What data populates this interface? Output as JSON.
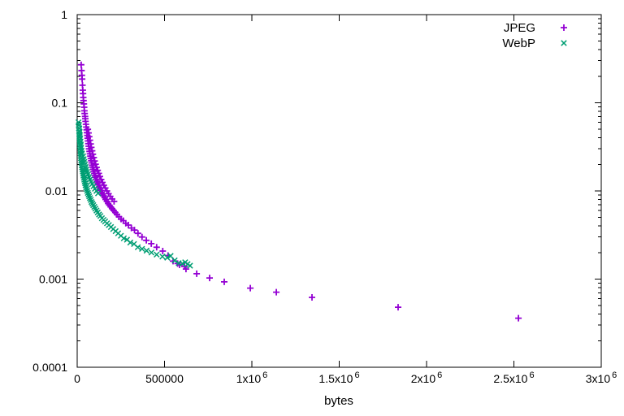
{
  "chart_data": {
    "type": "scatter",
    "title": "",
    "xlabel": "bytes",
    "ylabel": "",
    "background": "#ffffff",
    "axis_color": "#000000",
    "grid": false,
    "legend": {
      "position": "top-right-inside",
      "box": false
    },
    "x_axis": {
      "min": 0,
      "max": 3000000,
      "scale": "linear",
      "ticks": [
        {
          "value": 0,
          "base": "0",
          "sup": ""
        },
        {
          "value": 500000,
          "base": "500000",
          "sup": ""
        },
        {
          "value": 1000000,
          "base": "1x10",
          "sup": "6"
        },
        {
          "value": 1500000,
          "base": "1.5x10",
          "sup": "6"
        },
        {
          "value": 2000000,
          "base": "2x10",
          "sup": "6"
        },
        {
          "value": 2500000,
          "base": "2.5x10",
          "sup": "6"
        },
        {
          "value": 3000000,
          "base": "3x10",
          "sup": "6"
        }
      ]
    },
    "y_axis": {
      "min": 0.0001,
      "max": 1,
      "scale": "log",
      "ticks": [
        {
          "value": 1,
          "label": "1"
        },
        {
          "value": 0.1,
          "label": "0.1"
        },
        {
          "value": 0.01,
          "label": "0.01"
        },
        {
          "value": 0.001,
          "label": "0.001"
        },
        {
          "value": 0.0001,
          "label": "0.0001"
        }
      ],
      "minor_ticks": "2-9 per decade"
    },
    "series": [
      {
        "name": "JPEG",
        "marker": "plus",
        "color": "#9400D3",
        "points": [
          [
            23000,
            0.27
          ],
          [
            25000,
            0.232
          ],
          [
            27000,
            0.205
          ],
          [
            28500,
            0.186
          ],
          [
            30000,
            0.158
          ],
          [
            32000,
            0.139
          ],
          [
            33500,
            0.127
          ],
          [
            35000,
            0.115
          ],
          [
            36500,
            0.106
          ],
          [
            38000,
            0.097
          ],
          [
            40000,
            0.089
          ],
          [
            41500,
            0.081
          ],
          [
            43000,
            0.0755
          ],
          [
            45000,
            0.07
          ],
          [
            46500,
            0.066
          ],
          [
            48000,
            0.0615
          ],
          [
            50000,
            0.057
          ],
          [
            52000,
            0.053
          ],
          [
            54000,
            0.0492
          ],
          [
            56000,
            0.0458
          ],
          [
            58000,
            0.0426
          ],
          [
            60000,
            0.0396
          ],
          [
            62000,
            0.0369
          ],
          [
            64000,
            0.0344
          ],
          [
            66000,
            0.0321
          ],
          [
            68000,
            0.03
          ],
          [
            70500,
            0.0281
          ],
          [
            73000,
            0.0264
          ],
          [
            75500,
            0.0248
          ],
          [
            78000,
            0.0233
          ],
          [
            80500,
            0.022
          ],
          [
            83000,
            0.0208
          ],
          [
            86000,
            0.0196
          ],
          [
            89000,
            0.0186
          ],
          [
            92000,
            0.0176
          ],
          [
            95000,
            0.0167
          ],
          [
            98000,
            0.0158
          ],
          [
            101000,
            0.015
          ],
          [
            105000,
            0.0143
          ],
          [
            109000,
            0.0136
          ],
          [
            113000,
            0.0129
          ],
          [
            117000,
            0.0123
          ],
          [
            121000,
            0.0117
          ],
          [
            125000,
            0.0111
          ],
          [
            130000,
            0.0106
          ],
          [
            135000,
            0.0101
          ],
          [
            140000,
            0.0096
          ],
          [
            145000,
            0.0092
          ],
          [
            151000,
            0.0088
          ],
          [
            157000,
            0.0084
          ],
          [
            163000,
            0.008
          ],
          [
            170000,
            0.0076
          ],
          [
            177000,
            0.0072
          ],
          [
            184000,
            0.0069
          ],
          [
            192000,
            0.0066
          ],
          [
            200000,
            0.0063
          ],
          [
            209000,
            0.006
          ],
          [
            218000,
            0.0057
          ],
          [
            228000,
            0.0054
          ],
          [
            239000,
            0.0051
          ],
          [
            251000,
            0.0048
          ],
          [
            264000,
            0.0046
          ],
          [
            278000,
            0.0043
          ],
          [
            293000,
            0.0041
          ],
          [
            310000,
            0.0038
          ],
          [
            328000,
            0.0036
          ],
          [
            348000,
            0.0033
          ],
          [
            371000,
            0.003
          ],
          [
            396000,
            0.00275
          ],
          [
            424000,
            0.00252
          ],
          [
            455000,
            0.0023
          ],
          [
            490000,
            0.00208
          ],
          [
            520000,
            0.00185
          ],
          [
            549000,
            0.0016
          ],
          [
            575000,
            0.0015
          ],
          [
            586000,
            0.00145
          ],
          [
            614000,
            0.00139
          ],
          [
            623000,
            0.0013
          ],
          [
            684000,
            0.00115
          ],
          [
            758000,
            0.00103
          ],
          [
            842000,
            0.00093
          ],
          [
            991000,
            0.00079
          ],
          [
            1140000,
            0.00071
          ],
          [
            1344000,
            0.00062
          ],
          [
            1837000,
            0.00048
          ],
          [
            2526000,
            0.00036
          ],
          [
            61000,
            0.05
          ],
          [
            65000,
            0.0455
          ],
          [
            69000,
            0.0413
          ],
          [
            73000,
            0.0376
          ],
          [
            77000,
            0.0342
          ],
          [
            81000,
            0.0312
          ],
          [
            85500,
            0.0285
          ],
          [
            90000,
            0.0261
          ],
          [
            95000,
            0.0239
          ],
          [
            100000,
            0.0219
          ],
          [
            105500,
            0.0201
          ],
          [
            111000,
            0.0185
          ],
          [
            117000,
            0.0171
          ],
          [
            123500,
            0.0158
          ],
          [
            130000,
            0.0146
          ],
          [
            137000,
            0.0135
          ],
          [
            144500,
            0.0125
          ],
          [
            152500,
            0.0116
          ],
          [
            161000,
            0.0108
          ],
          [
            170000,
            0.01
          ],
          [
            179500,
            0.0093
          ],
          [
            189500,
            0.0087
          ],
          [
            200000,
            0.0081
          ],
          [
            211000,
            0.0076
          ]
        ]
      },
      {
        "name": "WebP",
        "marker": "cross",
        "color": "#009E73",
        "points": [
          [
            8000,
            0.06
          ],
          [
            9000,
            0.0555
          ],
          [
            10000,
            0.0515
          ],
          [
            11000,
            0.0477
          ],
          [
            12000,
            0.0442
          ],
          [
            13000,
            0.041
          ],
          [
            14000,
            0.0381
          ],
          [
            15000,
            0.0354
          ],
          [
            16000,
            0.0329
          ],
          [
            17000,
            0.0306
          ],
          [
            18000,
            0.0286
          ],
          [
            19000,
            0.0267
          ],
          [
            20000,
            0.025
          ],
          [
            21500,
            0.0235
          ],
          [
            23000,
            0.0221
          ],
          [
            24500,
            0.0208
          ],
          [
            26000,
            0.0196
          ],
          [
            28000,
            0.0185
          ],
          [
            30000,
            0.0175
          ],
          [
            32000,
            0.0166
          ],
          [
            34000,
            0.0157
          ],
          [
            36000,
            0.0149
          ],
          [
            38000,
            0.0141
          ],
          [
            40500,
            0.0134
          ],
          [
            43000,
            0.0128
          ],
          [
            45500,
            0.0122
          ],
          [
            48000,
            0.0116
          ],
          [
            51000,
            0.011
          ],
          [
            54000,
            0.0105
          ],
          [
            57500,
            0.01
          ],
          [
            61000,
            0.0095
          ],
          [
            65000,
            0.0091
          ],
          [
            69000,
            0.0087
          ],
          [
            73000,
            0.0083
          ],
          [
            77500,
            0.0079
          ],
          [
            82000,
            0.0075
          ],
          [
            87000,
            0.0072
          ],
          [
            92000,
            0.0069
          ],
          [
            98000,
            0.0066
          ],
          [
            104000,
            0.0063
          ],
          [
            110500,
            0.006
          ],
          [
            117500,
            0.0057
          ],
          [
            125000,
            0.0054
          ],
          [
            133000,
            0.0052
          ],
          [
            141500,
            0.0049
          ],
          [
            150500,
            0.0047
          ],
          [
            160000,
            0.0045
          ],
          [
            170500,
            0.0043
          ],
          [
            181500,
            0.0041
          ],
          [
            193500,
            0.0039
          ],
          [
            206000,
            0.0037
          ],
          [
            220000,
            0.0035
          ],
          [
            234500,
            0.0033
          ],
          [
            250000,
            0.0031
          ],
          [
            267000,
            0.0029
          ],
          [
            285000,
            0.0028
          ],
          [
            304000,
            0.0026
          ],
          [
            325000,
            0.0025
          ],
          [
            347000,
            0.0023
          ],
          [
            371000,
            0.0022
          ],
          [
            397000,
            0.0021
          ],
          [
            425000,
            0.002
          ],
          [
            455000,
            0.0019
          ],
          [
            488000,
            0.0018
          ],
          [
            516000,
            0.00175
          ],
          [
            535000,
            0.00183
          ],
          [
            558000,
            0.00163
          ],
          [
            581000,
            0.00152
          ],
          [
            602000,
            0.0015
          ],
          [
            618000,
            0.00155
          ],
          [
            632000,
            0.00148
          ],
          [
            646000,
            0.00142
          ],
          [
            11000,
            0.056
          ],
          [
            12500,
            0.0512
          ],
          [
            14000,
            0.0468
          ],
          [
            15500,
            0.043
          ],
          [
            17000,
            0.0396
          ],
          [
            19000,
            0.0364
          ],
          [
            21000,
            0.0336
          ],
          [
            23000,
            0.031
          ],
          [
            25000,
            0.0287
          ],
          [
            27500,
            0.0266
          ],
          [
            34000,
            0.0247
          ],
          [
            37500,
            0.023
          ],
          [
            41000,
            0.0214
          ],
          [
            44500,
            0.02
          ],
          [
            48500,
            0.0187
          ],
          [
            52500,
            0.0175
          ],
          [
            57000,
            0.0164
          ],
          [
            62000,
            0.0154
          ],
          [
            67500,
            0.0144
          ],
          [
            73000,
            0.0135
          ],
          [
            79000,
            0.0127
          ],
          [
            86000,
            0.012
          ],
          [
            93500,
            0.0113
          ],
          [
            101500,
            0.0106
          ],
          [
            110000,
            0.01
          ],
          [
            119500,
            0.0094
          ]
        ]
      }
    ]
  }
}
